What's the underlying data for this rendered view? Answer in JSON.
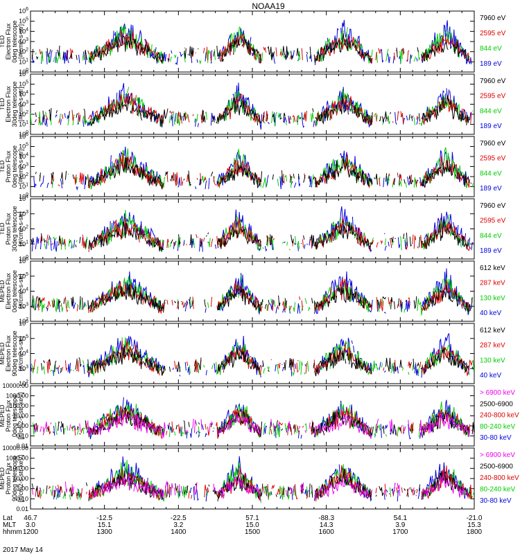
{
  "chart_data": {
    "type": "line",
    "title": "NOAA19",
    "date_label": "2017 May 14",
    "x_axis": {
      "rows": [
        {
          "name": "Lat",
          "values": [
            "46.7",
            "-12.5",
            "-22.5",
            "57.1",
            "-88.3",
            "54.1",
            "-21.0"
          ]
        },
        {
          "name": "MLT",
          "values": [
            "3.0",
            "15.1",
            "3.2",
            "15.0",
            "14.3",
            "3.9",
            "15.3"
          ]
        },
        {
          "name": "hhmm",
          "values": [
            "1200",
            "1300",
            "1400",
            "1500",
            "1600",
            "1700",
            "1800"
          ]
        }
      ],
      "tick_times": [
        1200,
        1300,
        1400,
        1500,
        1600,
        1700,
        1800
      ],
      "range": [
        1200,
        1800
      ]
    },
    "panels": [
      {
        "ylabel_lines": [
          "TED",
          "Electron Flux",
          "0deg telescope",
          "[#/cm2-s-str]"
        ],
        "scale": "log",
        "ylim": [
          1,
          1000000
        ],
        "yticks": [
          "10^0",
          "10^1",
          "10^2",
          "10^3",
          "10^4",
          "10^5",
          "10^6"
        ],
        "legend": [
          {
            "label": "7960 eV",
            "color": "#000000"
          },
          {
            "label": "2595 eV",
            "color": "#dd0000"
          },
          {
            "label": "844 eV",
            "color": "#00cc00"
          },
          {
            "label": "189 eV",
            "color": "#0000dd"
          }
        ]
      },
      {
        "ylabel_lines": [
          "TED",
          "Electron Flux",
          "30deg telescope",
          "[#/cm2-s-str]"
        ],
        "scale": "log",
        "ylim": [
          1,
          1000000
        ],
        "yticks": [
          "10^0",
          "10^1",
          "10^2",
          "10^3",
          "10^4",
          "10^5",
          "10^6"
        ],
        "legend": [
          {
            "label": "7960 eV",
            "color": "#000000"
          },
          {
            "label": "2595 eV",
            "color": "#dd0000"
          },
          {
            "label": "844 eV",
            "color": "#00cc00"
          },
          {
            "label": "189 eV",
            "color": "#0000dd"
          }
        ]
      },
      {
        "ylabel_lines": [
          "TED",
          "Proton Flux",
          "0deg telescope",
          "[#/cm2-s-str]"
        ],
        "scale": "log",
        "ylim": [
          1,
          1000000
        ],
        "yticks": [
          "10^0",
          "10^1",
          "10^2",
          "10^3",
          "10^4",
          "10^5",
          "10^6"
        ],
        "legend": [
          {
            "label": "7960 eV",
            "color": "#000000"
          },
          {
            "label": "2595 eV",
            "color": "#dd0000"
          },
          {
            "label": "844 eV",
            "color": "#00cc00"
          },
          {
            "label": "189 eV",
            "color": "#0000dd"
          }
        ]
      },
      {
        "ylabel_lines": [
          "TED",
          "Proton Flux",
          "30deg telescope",
          "[#/cm2-s-str]"
        ],
        "scale": "log",
        "ylim": [
          1,
          100000
        ],
        "yticks": [
          "10^0",
          "10^1",
          "10^2",
          "10^3",
          "10^4"
        ],
        "legend": [
          {
            "label": "7960 eV",
            "color": "#000000"
          },
          {
            "label": "2595 eV",
            "color": "#dd0000"
          },
          {
            "label": "844 eV",
            "color": "#00cc00"
          },
          {
            "label": "189 eV",
            "color": "#0000dd"
          }
        ]
      },
      {
        "ylabel_lines": [
          "MEPED",
          "Electron Flux",
          "0deg telescope",
          "[#/cm2-s-str]"
        ],
        "scale": "log",
        "ylim": [
          100,
          1000000
        ],
        "yticks": [
          "10^2",
          "10^3",
          "10^4",
          "10^5",
          "10^6"
        ],
        "legend": [
          {
            "label": "612 keV",
            "color": "#000000"
          },
          {
            "label": "287 keV",
            "color": "#dd0000"
          },
          {
            "label": "130 keV",
            "color": "#00cc00"
          },
          {
            "label": "40 keV",
            "color": "#0000dd"
          }
        ]
      },
      {
        "ylabel_lines": [
          "MEPED",
          "Electron Flux",
          "90deg telescope",
          "[#/cm2-s-str]"
        ],
        "scale": "log",
        "ylim": [
          100,
          1000000
        ],
        "yticks": [
          "10^2",
          "10^3",
          "10^4",
          "10^5",
          "10^6"
        ],
        "legend": [
          {
            "label": "612 keV",
            "color": "#000000"
          },
          {
            "label": "287 keV",
            "color": "#dd0000"
          },
          {
            "label": "130 keV",
            "color": "#00cc00"
          },
          {
            "label": "40 keV",
            "color": "#0000dd"
          }
        ]
      },
      {
        "ylabel_lines": [
          "MEPED",
          "Proton Flux",
          "0deg telescope",
          "[#/cm2-s-str-keV]"
        ],
        "scale": "log",
        "ylim": [
          0.01,
          10000
        ],
        "yticks": [
          "0.01",
          "0.10",
          "1.00",
          "10.00",
          "100.00",
          "1000.00",
          "10000.00"
        ],
        "legend": [
          {
            "label": "> 6900 keV",
            "color": "#ee00ee"
          },
          {
            "label": "2500-6900",
            "color": "#000000"
          },
          {
            "label": "240-800 keV",
            "color": "#dd0000"
          },
          {
            "label": "80-240 keV",
            "color": "#00cc00"
          },
          {
            "label": "30-80 keV",
            "color": "#0000dd"
          }
        ]
      },
      {
        "ylabel_lines": [
          "MEPED",
          "Proton Flux",
          "90deg telescope",
          "[#/cm2-s-str-keV]"
        ],
        "scale": "log",
        "ylim": [
          0.01,
          10000
        ],
        "yticks": [
          "0.01",
          "0.10",
          "1.00",
          "10.00",
          "100.00",
          "1000.00",
          "10000.00"
        ],
        "legend": [
          {
            "label": "> 6900 keV",
            "color": "#ee00ee"
          },
          {
            "label": "2500-6900",
            "color": "#000000"
          },
          {
            "label": "240-800 keV",
            "color": "#dd0000"
          },
          {
            "label": "80-240 keV",
            "color": "#00cc00"
          },
          {
            "label": "30-80 keV",
            "color": "#0000dd"
          }
        ]
      }
    ]
  }
}
